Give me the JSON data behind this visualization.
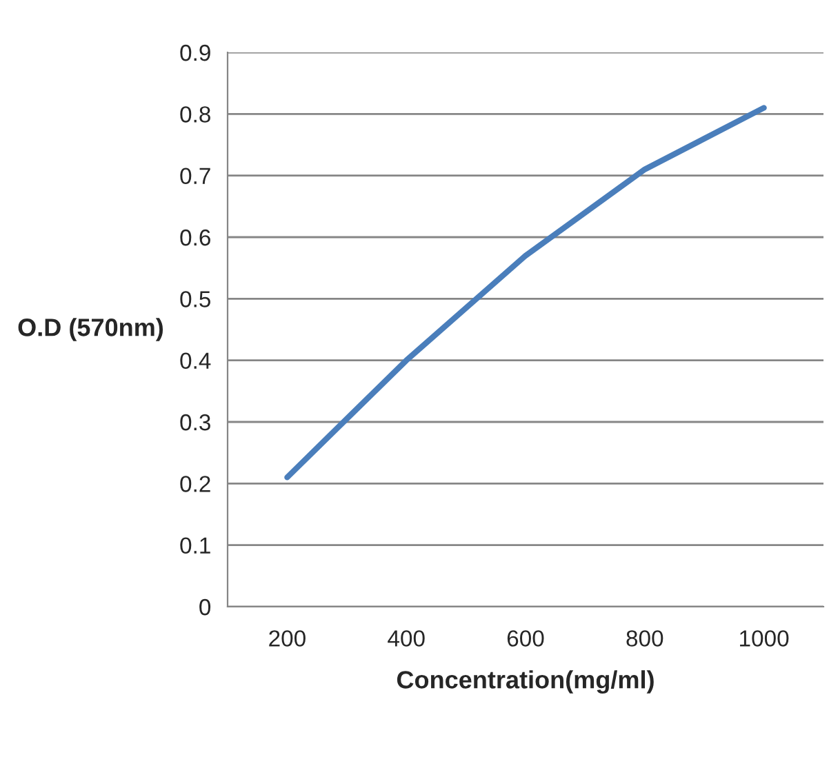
{
  "chart_data": {
    "type": "line",
    "xlabel": "Concentration(mg/ml)",
    "ylabel": "O.D (570nm)",
    "categories": [
      "200",
      "400",
      "600",
      "800",
      "1000"
    ],
    "series": [
      {
        "color": "#4a7ebb",
        "values": [
          0.21,
          0.4,
          0.57,
          0.71,
          0.81
        ]
      }
    ],
    "ylim": [
      0,
      0.9
    ],
    "yticks": [
      0,
      0.1,
      0.2,
      0.3,
      0.4,
      0.5,
      0.6,
      0.7,
      0.8,
      0.9
    ],
    "grid": "y",
    "marker": "none",
    "line_style": "solid"
  }
}
